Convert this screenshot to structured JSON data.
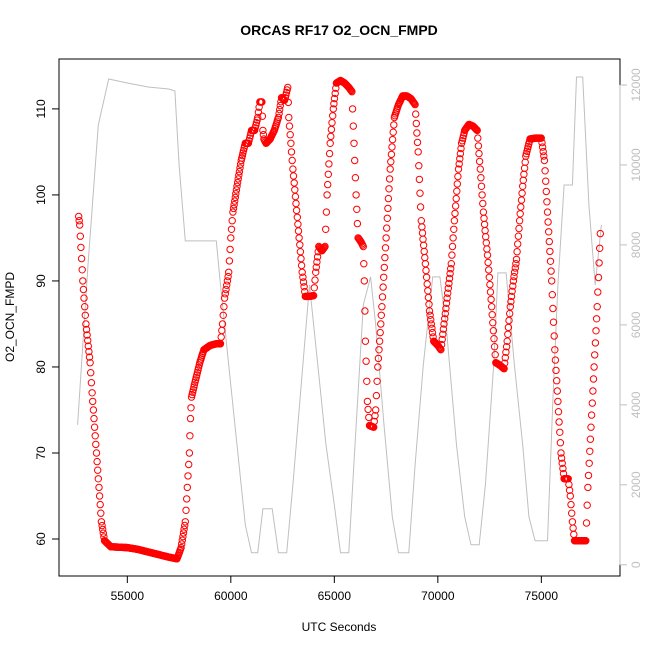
{
  "chart_data": {
    "type": "scatter",
    "title": "ORCAS RF17 O2_OCN_FMPD",
    "xlabel": "UTC Seconds",
    "ylabel": "O2_OCN_FMPD",
    "y2label": "",
    "xlim": [
      51700,
      78800
    ],
    "ylim": [
      55.7,
      115.8
    ],
    "y2lim": [
      -280,
      12650
    ],
    "x_ticks": [
      55000,
      60000,
      65000,
      70000,
      75000
    ],
    "y_ticks": [
      60,
      70,
      80,
      90,
      100,
      110
    ],
    "y2_ticks": [
      0,
      2000,
      4000,
      6000,
      8000,
      10000,
      12000
    ],
    "grid": false,
    "series": [
      {
        "role": "primary",
        "marker": "open-circle",
        "color": "#ff0000",
        "points": [
          [
            52650,
            97.5
          ],
          [
            52700,
            96.5
          ],
          [
            52850,
            90
          ],
          [
            53000,
            85
          ],
          [
            53200,
            80.5
          ],
          [
            53300,
            77
          ],
          [
            53450,
            72
          ],
          [
            53600,
            67
          ],
          [
            53750,
            62
          ],
          [
            53900,
            59.8
          ],
          [
            54200,
            59.1
          ],
          [
            55000,
            59
          ],
          [
            55500,
            58.8
          ],
          [
            56000,
            58.5
          ],
          [
            56500,
            58.2
          ],
          [
            57000,
            57.9
          ],
          [
            57400,
            57.7
          ],
          [
            57600,
            59
          ],
          [
            57800,
            62
          ],
          [
            57900,
            66
          ],
          [
            58000,
            70
          ],
          [
            58050,
            74
          ],
          [
            58100,
            76.5
          ],
          [
            58300,
            78.5
          ],
          [
            58500,
            80.5
          ],
          [
            58700,
            82
          ],
          [
            59000,
            82.5
          ],
          [
            59300,
            82.7
          ],
          [
            59500,
            82.7
          ],
          [
            59600,
            85
          ],
          [
            59700,
            88
          ],
          [
            59800,
            89.5
          ],
          [
            59900,
            91
          ],
          [
            60000,
            95
          ],
          [
            60100,
            98
          ],
          [
            60300,
            101
          ],
          [
            60500,
            104
          ],
          [
            60700,
            106
          ],
          [
            60850,
            106
          ],
          [
            61000,
            107.5
          ],
          [
            61150,
            107.5
          ],
          [
            61300,
            109
          ],
          [
            61400,
            110.8
          ],
          [
            61500,
            110.8
          ],
          [
            61550,
            107.5
          ],
          [
            61600,
            106.5
          ],
          [
            61700,
            106
          ],
          [
            61900,
            106.5
          ],
          [
            62100,
            107.5
          ],
          [
            62300,
            109
          ],
          [
            62450,
            111.3
          ],
          [
            62600,
            111
          ],
          [
            62750,
            112.5
          ],
          [
            62800,
            109
          ],
          [
            62900,
            106
          ],
          [
            63000,
            103
          ],
          [
            63150,
            99
          ],
          [
            63300,
            95
          ],
          [
            63450,
            91
          ],
          [
            63600,
            88.2
          ],
          [
            63800,
            88.2
          ],
          [
            64000,
            88.3
          ],
          [
            64100,
            91
          ],
          [
            64250,
            94
          ],
          [
            64400,
            93.5
          ],
          [
            64550,
            94
          ],
          [
            64650,
            100
          ],
          [
            64800,
            106
          ],
          [
            64950,
            110
          ],
          [
            65100,
            113
          ],
          [
            65300,
            113.3
          ],
          [
            65500,
            113
          ],
          [
            65700,
            112.5
          ],
          [
            65850,
            112
          ],
          [
            65950,
            106
          ],
          [
            66050,
            100
          ],
          [
            66150,
            95
          ],
          [
            66300,
            94.5
          ],
          [
            66400,
            94
          ],
          [
            66450,
            90
          ],
          [
            66500,
            83
          ],
          [
            66600,
            76
          ],
          [
            66700,
            73.2
          ],
          [
            66900,
            73
          ],
          [
            67000,
            75
          ],
          [
            67100,
            80
          ],
          [
            67300,
            87
          ],
          [
            67500,
            95
          ],
          [
            67700,
            103
          ],
          [
            67900,
            109
          ],
          [
            68100,
            110.5
          ],
          [
            68300,
            111.5
          ],
          [
            68500,
            111.5
          ],
          [
            68700,
            111.2
          ],
          [
            68900,
            110.5
          ],
          [
            69050,
            105
          ],
          [
            69200,
            97
          ],
          [
            69400,
            92
          ],
          [
            69600,
            86.5
          ],
          [
            69800,
            83
          ],
          [
            70000,
            82.5
          ],
          [
            70150,
            82
          ],
          [
            70300,
            85
          ],
          [
            70450,
            88
          ],
          [
            70650,
            92
          ],
          [
            70800,
            97
          ],
          [
            71000,
            103
          ],
          [
            71150,
            106
          ],
          [
            71300,
            107.5
          ],
          [
            71500,
            108.2
          ],
          [
            71700,
            108
          ],
          [
            71900,
            107.5
          ],
          [
            72050,
            103
          ],
          [
            72200,
            98
          ],
          [
            72400,
            93
          ],
          [
            72600,
            87
          ],
          [
            72800,
            80.5
          ],
          [
            73000,
            80.2
          ],
          [
            73200,
            79.8
          ],
          [
            73350,
            83
          ],
          [
            73500,
            87
          ],
          [
            73650,
            90
          ],
          [
            73800,
            92.5
          ],
          [
            73950,
            97
          ],
          [
            74100,
            101
          ],
          [
            74250,
            104.5
          ],
          [
            74450,
            106.5
          ],
          [
            74700,
            106.6
          ],
          [
            75000,
            106.6
          ],
          [
            75150,
            104
          ],
          [
            75300,
            98
          ],
          [
            75500,
            90
          ],
          [
            75650,
            82
          ],
          [
            75800,
            76
          ],
          [
            75950,
            70
          ],
          [
            76100,
            67
          ],
          [
            76300,
            67
          ],
          [
            76400,
            65
          ],
          [
            76500,
            62
          ],
          [
            76600,
            59.8
          ],
          [
            76800,
            59.8
          ],
          [
            77000,
            59.8
          ],
          [
            77150,
            59.8
          ],
          [
            77250,
            66
          ],
          [
            77400,
            73
          ],
          [
            77550,
            80
          ],
          [
            77700,
            87
          ],
          [
            77850,
            95.5
          ]
        ]
      },
      {
        "role": "secondary",
        "marker": "line",
        "color": "#bfbfbf",
        "points": [
          [
            52600,
            3500
          ],
          [
            53100,
            7500
          ],
          [
            53600,
            11000
          ],
          [
            54100,
            12150
          ],
          [
            55000,
            12050
          ],
          [
            56000,
            11950
          ],
          [
            57000,
            11900
          ],
          [
            57300,
            11850
          ],
          [
            57500,
            10000
          ],
          [
            57800,
            8100
          ],
          [
            58500,
            8100
          ],
          [
            59300,
            8100
          ],
          [
            59500,
            7000
          ],
          [
            59900,
            5000
          ],
          [
            60300,
            3000
          ],
          [
            60700,
            1000
          ],
          [
            61000,
            300
          ],
          [
            61300,
            300
          ],
          [
            61550,
            1400
          ],
          [
            62000,
            1400
          ],
          [
            62300,
            300
          ],
          [
            62700,
            300
          ],
          [
            63000,
            2000
          ],
          [
            63400,
            4500
          ],
          [
            63800,
            7000
          ],
          [
            64200,
            5000
          ],
          [
            64600,
            3000
          ],
          [
            65000,
            1500
          ],
          [
            65300,
            300
          ],
          [
            65700,
            300
          ],
          [
            66000,
            3000
          ],
          [
            66400,
            6500
          ],
          [
            66750,
            7200
          ],
          [
            67000,
            6000
          ],
          [
            67400,
            3500
          ],
          [
            67800,
            1200
          ],
          [
            68100,
            300
          ],
          [
            68600,
            300
          ],
          [
            68900,
            2500
          ],
          [
            69300,
            5000
          ],
          [
            69750,
            7200
          ],
          [
            70100,
            7200
          ],
          [
            70400,
            6000
          ],
          [
            70900,
            3000
          ],
          [
            71300,
            1200
          ],
          [
            71600,
            500
          ],
          [
            72000,
            500
          ],
          [
            72300,
            2000
          ],
          [
            72700,
            5000
          ],
          [
            72900,
            7300
          ],
          [
            73300,
            7300
          ],
          [
            73700,
            5000
          ],
          [
            74100,
            3000
          ],
          [
            74400,
            1200
          ],
          [
            74700,
            600
          ],
          [
            75300,
            600
          ],
          [
            75550,
            4000
          ],
          [
            75800,
            7000
          ],
          [
            76100,
            9500
          ],
          [
            76500,
            9500
          ],
          [
            76700,
            12200
          ],
          [
            77000,
            12200
          ],
          [
            77300,
            9000
          ],
          [
            77600,
            7000
          ],
          [
            77900,
            8500
          ]
        ]
      }
    ]
  }
}
